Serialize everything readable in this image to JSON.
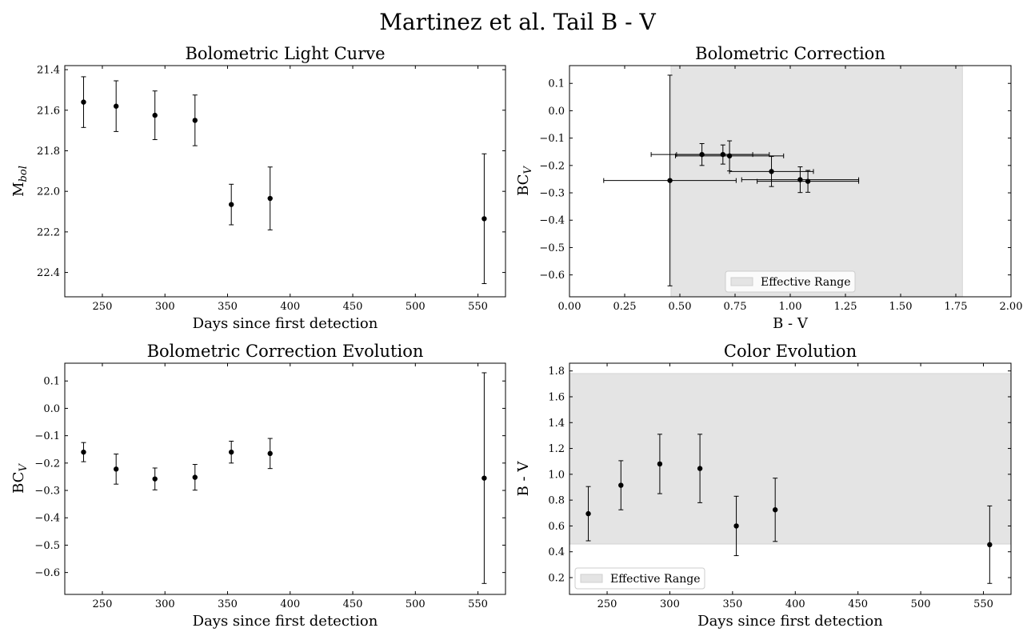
{
  "figure": {
    "title": "Martinez et al. Tail B - V"
  },
  "chart_data": [
    {
      "type": "scatter",
      "title": "Bolometric Light Curve",
      "xlabel": "Days since first detection",
      "ylabel": "M",
      "ylabel_sub": "bol",
      "xlim": [
        220,
        572
      ],
      "ylim": [
        22.52,
        21.38
      ],
      "y_inverted": true,
      "xticks": [
        250,
        300,
        350,
        400,
        450,
        500,
        550
      ],
      "xtick_labels": [
        "250",
        "300",
        "350",
        "400",
        "450",
        "500",
        "550"
      ],
      "yticks": [
        21.4,
        21.6,
        21.8,
        22.0,
        22.2,
        22.4
      ],
      "ytick_labels": [
        "21.4",
        "21.6",
        "21.8",
        "22.0",
        "22.2",
        "22.4"
      ],
      "shaded_band": null,
      "legend": null,
      "points": [
        {
          "x": 235,
          "y": 21.56,
          "yerr": 0.125
        },
        {
          "x": 261,
          "y": 21.58,
          "yerr": 0.125
        },
        {
          "x": 292,
          "y": 21.625,
          "yerr": 0.12
        },
        {
          "x": 324,
          "y": 21.65,
          "yerr": 0.125
        },
        {
          "x": 353,
          "y": 22.065,
          "yerr": 0.1
        },
        {
          "x": 384,
          "y": 22.035,
          "yerr": 0.155
        },
        {
          "x": 555,
          "y": 22.135,
          "yerr": 0.32
        }
      ]
    },
    {
      "type": "scatter",
      "title": "Bolometric Correction",
      "xlabel": "B - V",
      "ylabel": "BC",
      "ylabel_sub": "V",
      "xlim": [
        0.0,
        2.0
      ],
      "ylim": [
        -0.68,
        0.165
      ],
      "y_inverted": false,
      "xticks": [
        0.0,
        0.25,
        0.5,
        0.75,
        1.0,
        1.25,
        1.5,
        1.75,
        2.0
      ],
      "xtick_labels": [
        "0.00",
        "0.25",
        "0.50",
        "0.75",
        "1.00",
        "1.25",
        "1.50",
        "1.75",
        "2.00"
      ],
      "yticks": [
        0.1,
        0.0,
        -0.1,
        -0.2,
        -0.3,
        -0.4,
        -0.5,
        -0.6
      ],
      "ytick_labels": [
        "0.1",
        "0.0",
        "−0.1",
        "−0.2",
        "−0.3",
        "−0.4",
        "−0.5",
        "−0.6"
      ],
      "shaded_band": {
        "axis": "x",
        "from": 0.46,
        "to": 1.78,
        "color": "#e4e4e4"
      },
      "legend": {
        "label": "Effective Range",
        "location": "lower center"
      },
      "points": [
        {
          "x": 0.455,
          "y": -0.255,
          "xerr": 0.3,
          "yerr": 0.385
        },
        {
          "x": 0.6,
          "y": -0.16,
          "xerr": 0.23,
          "yerr": 0.04
        },
        {
          "x": 0.695,
          "y": -0.16,
          "xerr": 0.21,
          "yerr": 0.035
        },
        {
          "x": 0.725,
          "y": -0.165,
          "xerr": 0.245,
          "yerr": 0.055
        },
        {
          "x": 0.915,
          "y": -0.222,
          "xerr": 0.19,
          "yerr": 0.055
        },
        {
          "x": 1.045,
          "y": -0.252,
          "xerr": 0.265,
          "yerr": 0.047
        },
        {
          "x": 1.08,
          "y": -0.258,
          "xerr": 0.23,
          "yerr": 0.04
        }
      ]
    },
    {
      "type": "scatter",
      "title": "Bolometric Correction Evolution",
      "xlabel": "Days since first detection",
      "ylabel": "BC",
      "ylabel_sub": "V",
      "xlim": [
        220,
        572
      ],
      "ylim": [
        -0.68,
        0.165
      ],
      "y_inverted": false,
      "xticks": [
        250,
        300,
        350,
        400,
        450,
        500,
        550
      ],
      "xtick_labels": [
        "250",
        "300",
        "350",
        "400",
        "450",
        "500",
        "550"
      ],
      "yticks": [
        0.1,
        0.0,
        -0.1,
        -0.2,
        -0.3,
        -0.4,
        -0.5,
        -0.6
      ],
      "ytick_labels": [
        "0.1",
        "0.0",
        "−0.1",
        "−0.2",
        "−0.3",
        "−0.4",
        "−0.5",
        "−0.6"
      ],
      "shaded_band": null,
      "legend": null,
      "points": [
        {
          "x": 235,
          "y": -0.16,
          "yerr": 0.035
        },
        {
          "x": 261,
          "y": -0.222,
          "yerr": 0.055
        },
        {
          "x": 292,
          "y": -0.258,
          "yerr": 0.04
        },
        {
          "x": 324,
          "y": -0.252,
          "yerr": 0.047
        },
        {
          "x": 353,
          "y": -0.16,
          "yerr": 0.04
        },
        {
          "x": 384,
          "y": -0.165,
          "yerr": 0.055
        },
        {
          "x": 555,
          "y": -0.255,
          "yerr": 0.385
        }
      ]
    },
    {
      "type": "scatter",
      "title": "Color Evolution",
      "xlabel": "Days since first detection",
      "ylabel": "B - V",
      "ylabel_sub": "",
      "xlim": [
        220,
        572
      ],
      "ylim": [
        0.07,
        1.86
      ],
      "y_inverted": false,
      "xticks": [
        250,
        300,
        350,
        400,
        450,
        500,
        550
      ],
      "xtick_labels": [
        "250",
        "300",
        "350",
        "400",
        "450",
        "500",
        "550"
      ],
      "yticks": [
        0.2,
        0.4,
        0.6,
        0.8,
        1.0,
        1.2,
        1.4,
        1.6,
        1.8
      ],
      "ytick_labels": [
        "0.2",
        "0.4",
        "0.6",
        "0.8",
        "1.0",
        "1.2",
        "1.4",
        "1.6",
        "1.8"
      ],
      "shaded_band": {
        "axis": "y",
        "from": 0.46,
        "to": 1.78,
        "color": "#e4e4e4"
      },
      "legend": {
        "label": "Effective Range",
        "location": "lower left"
      },
      "points": [
        {
          "x": 235,
          "y": 0.695,
          "yerr": 0.21
        },
        {
          "x": 261,
          "y": 0.915,
          "yerr": 0.19
        },
        {
          "x": 292,
          "y": 1.08,
          "yerr": 0.23
        },
        {
          "x": 324,
          "y": 1.045,
          "yerr": 0.265
        },
        {
          "x": 353,
          "y": 0.6,
          "yerr": 0.23
        },
        {
          "x": 384,
          "y": 0.725,
          "yerr": 0.245
        },
        {
          "x": 555,
          "y": 0.455,
          "yerr": 0.3
        }
      ]
    }
  ]
}
